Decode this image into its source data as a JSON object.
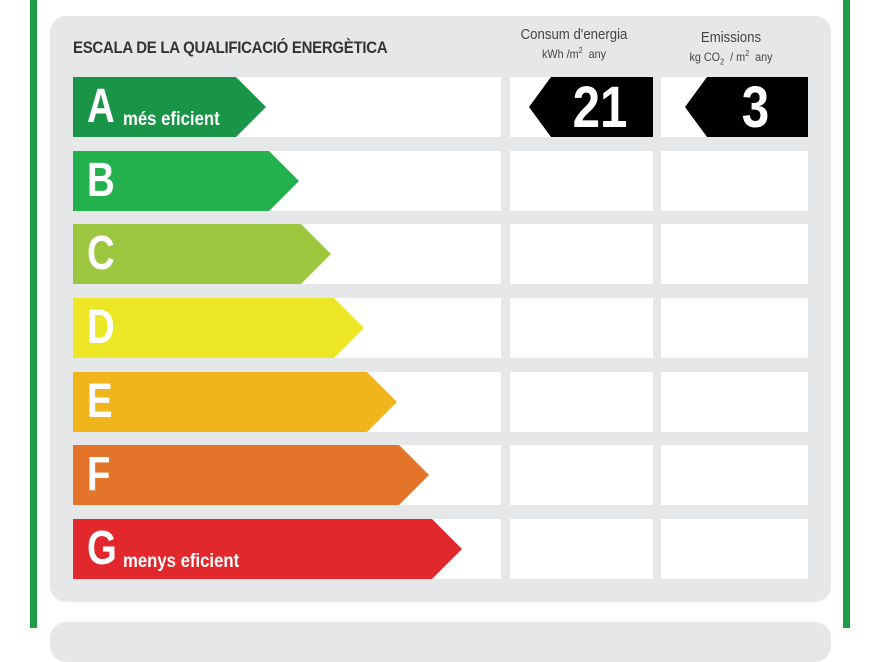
{
  "header": {
    "title": "ESCALA DE LA QUALIFICACIÓ ENERGÈTICA",
    "consumption_title": "Consum d'energia",
    "consumption_unit_prefix": "kWh /m",
    "consumption_unit_sup": "2",
    "consumption_unit_suffix": "any",
    "emissions_title": "Emissions",
    "emissions_unit_a": "kg CO",
    "emissions_unit_sub": "2",
    "emissions_unit_b": "/ m",
    "emissions_unit_sup": "2",
    "emissions_unit_suffix": "any"
  },
  "ratings": [
    {
      "letter": "A",
      "sublabel": "més eficient",
      "color": "#1a9447"
    },
    {
      "letter": "B",
      "sublabel": "",
      "color": "#22b14c"
    },
    {
      "letter": "C",
      "sublabel": "",
      "color": "#9dc73f"
    },
    {
      "letter": "D",
      "sublabel": "",
      "color": "#ece624"
    },
    {
      "letter": "E",
      "sublabel": "",
      "color": "#f1b51c"
    },
    {
      "letter": "F",
      "sublabel": "",
      "color": "#e3742a"
    },
    {
      "letter": "G",
      "sublabel": "menys eficient",
      "color": "#e3282d"
    }
  ],
  "result": {
    "rating": "A",
    "consumption_value": "21",
    "emissions_value": "3"
  },
  "colors": {
    "frame": "#1f9a46",
    "panel": "#e6e7e8",
    "badge": "#000000"
  }
}
